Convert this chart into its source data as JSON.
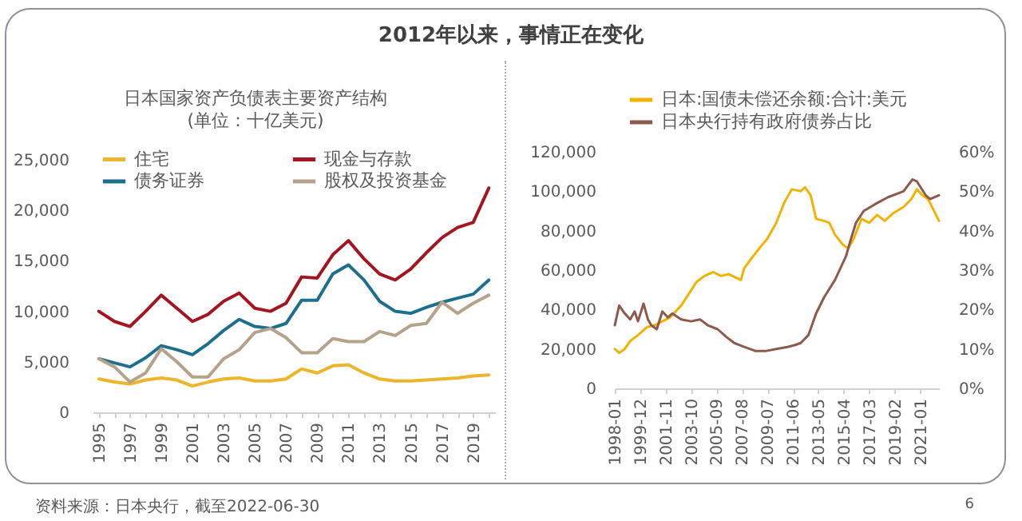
{
  "chart_data": [
    {
      "type": "other",
      "title": "2012年以来，事情正在变化",
      "annotations": [
        "资料来源：日本央行，截至2022-06-30",
        "6"
      ]
    },
    {
      "type": "line",
      "title": "日本国家资产负债表主要资产结构",
      "subtitle": "(单位：十亿美元)",
      "categories": [
        "1995",
        null,
        "1997",
        null,
        "1999",
        null,
        "2001",
        null,
        "2003",
        null,
        "2005",
        null,
        "2007",
        null,
        "2009",
        null,
        "2011",
        null,
        "2013",
        null,
        "2015",
        null,
        "2017",
        null,
        "2019",
        null
      ],
      "ylim": [
        0,
        25000
      ],
      "yticks": [
        0,
        {
          "value": 5000,
          "label": "5,000"
        },
        {
          "value": 10000,
          "label": "10,000"
        },
        {
          "value": 15000,
          "label": "15,000"
        },
        {
          "value": 20000,
          "label": "20,000"
        },
        {
          "value": 25000,
          "label": "25,000"
        }
      ],
      "legend": "top",
      "series": [
        {
          "name": "住宅",
          "color": "#ecb52a",
          "values": [
            3300,
            3000,
            2800,
            3200,
            3400,
            3200,
            2600,
            3000,
            3300,
            3400,
            3100,
            3100,
            3300,
            4300,
            3900,
            4600,
            4700,
            3900,
            3300,
            3100,
            3100,
            3200,
            3300,
            3400,
            3600,
            3700
          ]
        },
        {
          "name": "现金与存款",
          "color": "#a31621",
          "values": [
            10000,
            9000,
            8500,
            10000,
            11600,
            10300,
            9000,
            9700,
            11000,
            11800,
            10300,
            10000,
            10800,
            13400,
            13300,
            15600,
            17000,
            15200,
            13700,
            13100,
            14200,
            15800,
            17300,
            18300,
            18800,
            22200
          ]
        },
        {
          "name": "债务证券",
          "color": "#1e6f8e",
          "values": [
            5300,
            4900,
            4500,
            5400,
            6600,
            6200,
            5700,
            6800,
            8100,
            9200,
            8500,
            8300,
            8800,
            11100,
            11100,
            13700,
            14600,
            13100,
            11000,
            10000,
            9800,
            10400,
            10900,
            11300,
            11700,
            13100
          ]
        },
        {
          "name": "股权及投资基金",
          "color": "#b5a28a",
          "values": [
            5300,
            4500,
            3000,
            3900,
            6300,
            5000,
            3500,
            3500,
            5300,
            6200,
            7900,
            8300,
            7400,
            5900,
            5900,
            7300,
            7000,
            7000,
            8000,
            7600,
            8600,
            8800,
            10900,
            9800,
            10800,
            11600
          ]
        }
      ]
    },
    {
      "type": "line",
      "xlim": [
        "1998-01",
        "2022-06"
      ],
      "xticks": [
        "1998-01",
        "1999-12",
        "2001-11",
        "2003-10",
        "2005-09",
        "2007-08",
        "2009-07",
        "2011-06",
        "2013-05",
        "2015-04",
        "2017-03",
        "2019-02",
        "2021-01"
      ],
      "ylim": [
        0,
        120000
      ],
      "yticks": [
        0,
        {
          "value": 20000,
          "label": "20,000"
        },
        {
          "value": 40000,
          "label": "40,000"
        },
        {
          "value": 60000,
          "label": "60,000"
        },
        {
          "value": 80000,
          "label": "80,000"
        },
        {
          "value": 100000,
          "label": "100,000"
        },
        {
          "value": 120000,
          "label": "120,000"
        }
      ],
      "y2lim": [
        0,
        60
      ],
      "y2ticks": [
        {
          "value": 0,
          "label": "0%"
        },
        {
          "value": 10,
          "label": "10%"
        },
        {
          "value": 20,
          "label": "20%"
        },
        {
          "value": 30,
          "label": "30%"
        },
        {
          "value": 40,
          "label": "40%"
        },
        {
          "value": 50,
          "label": "50%"
        },
        {
          "value": 60,
          "label": "60%"
        }
      ],
      "legend": "top",
      "series": [
        {
          "name": "日本:国债未偿还余额:合计:美元",
          "color": "#f2b300",
          "x": [
            "1998-01",
            "1998-05",
            "1998-10",
            "1999-03",
            "1999-10",
            "2000-06",
            "2001-01",
            "2001-08",
            "2002-03",
            "2003-01",
            "2003-08",
            "2004-03",
            "2004-10",
            "2005-06",
            "2006-01",
            "2006-08",
            "2007-03",
            "2007-07",
            "2007-10",
            "2008-06",
            "2009-01",
            "2009-07",
            "2010-03",
            "2010-10",
            "2011-05",
            "2012-01",
            "2012-05",
            "2012-10",
            "2013-03",
            "2013-10",
            "2014-03",
            "2014-08",
            "2015-03",
            "2015-08",
            "2016-01",
            "2016-08",
            "2017-03",
            "2017-10",
            "2018-05",
            "2019-01",
            "2019-10",
            "2020-05",
            "2020-10",
            "2021-03",
            "2021-08",
            "2021-10",
            "2022-06"
          ],
          "values": [
            20000,
            18000,
            20000,
            24000,
            27000,
            31000,
            32000,
            34000,
            36000,
            42000,
            48000,
            54000,
            57000,
            59000,
            57000,
            58000,
            56000,
            55000,
            61000,
            67000,
            72000,
            76000,
            84000,
            94000,
            101000,
            100000,
            102000,
            98000,
            86000,
            85000,
            84000,
            78000,
            73000,
            71000,
            76000,
            86000,
            84000,
            88000,
            85000,
            89000,
            92000,
            96000,
            101000,
            98000,
            96000,
            94000,
            85000
          ]
        },
        {
          "name": "日本央行持有政府债券占比",
          "color": "#8b5a4c",
          "axis": "y2",
          "x": [
            "1998-01",
            "1998-05",
            "1998-10",
            "1999-03",
            "1999-07",
            "1999-10",
            "2000-03",
            "2000-07",
            "2000-10",
            "2001-03",
            "2001-08",
            "2002-01",
            "2002-05",
            "2003-01",
            "2003-10",
            "2004-06",
            "2005-01",
            "2005-10",
            "2006-06",
            "2007-01",
            "2007-10",
            "2008-08",
            "2009-06",
            "2010-03",
            "2011-01",
            "2011-08",
            "2012-01",
            "2012-08",
            "2013-03",
            "2013-10",
            "2014-08",
            "2015-06",
            "2015-10",
            "2016-03",
            "2016-10",
            "2017-10",
            "2018-08",
            "2019-10",
            "2020-06",
            "2020-10",
            "2021-06",
            "2021-10",
            "2022-06"
          ],
          "values": [
            16,
            21,
            19,
            17.5,
            19.5,
            17,
            21.5,
            17.5,
            16,
            15,
            19.5,
            18,
            19,
            17.5,
            17,
            17.5,
            16,
            15,
            13,
            11.5,
            10.5,
            9.5,
            9.5,
            10,
            10.5,
            11,
            11.5,
            13.5,
            19,
            23,
            27.5,
            33.5,
            37.5,
            42,
            45,
            47,
            48.5,
            50,
            53,
            52.5,
            49,
            48,
            49
          ]
        }
      ]
    }
  ]
}
